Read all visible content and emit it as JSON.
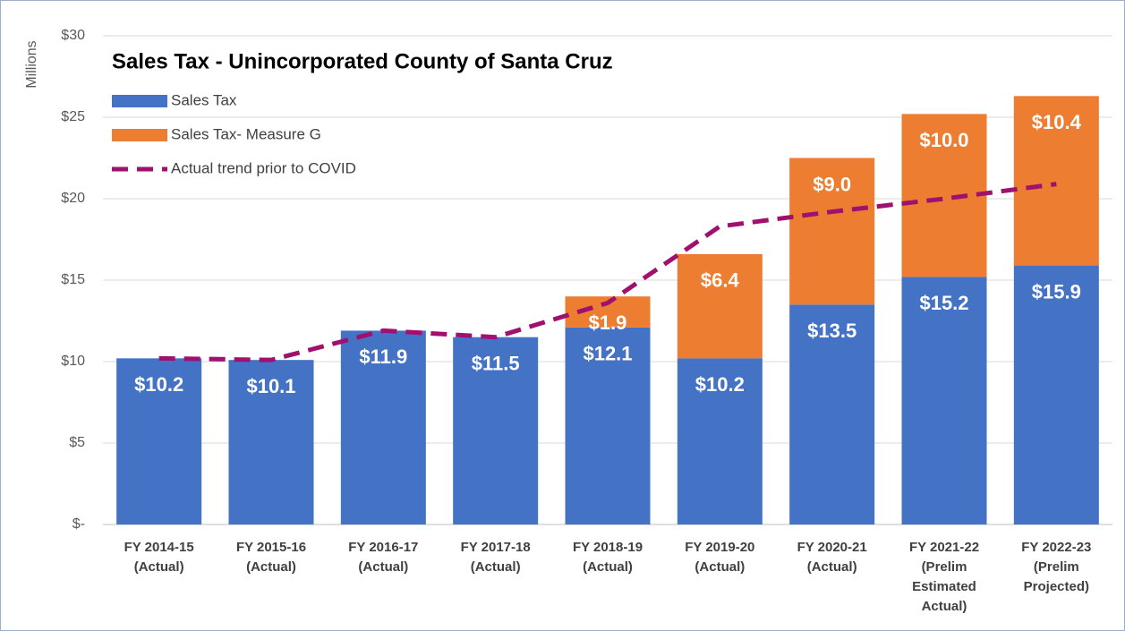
{
  "chart_data": {
    "type": "stacked_bar_line",
    "title": "Sales Tax - Unincorporated County of Santa Cruz",
    "y_label": "Millions",
    "categories": [
      [
        "FY 2014-15",
        "(Actual)"
      ],
      [
        "FY 2015-16",
        "(Actual)"
      ],
      [
        "FY 2016-17",
        "(Actual)"
      ],
      [
        "FY 2017-18",
        "(Actual)"
      ],
      [
        "FY 2018-19",
        "(Actual)"
      ],
      [
        "FY 2019-20",
        "(Actual)"
      ],
      [
        "FY 2020-21",
        "(Actual)"
      ],
      [
        "FY 2021-22",
        "(Prelim",
        "Estimated",
        "Actual)"
      ],
      [
        "FY 2022-23",
        "(Prelim",
        "Projected)"
      ]
    ],
    "series": [
      {
        "name": "Sales Tax",
        "color": "#4472c4",
        "kind": "bar",
        "values": [
          10.2,
          10.1,
          11.9,
          11.5,
          12.1,
          10.2,
          13.5,
          15.2,
          15.9
        ],
        "value_labels": [
          "$10.2",
          "$10.1",
          "$11.9",
          "$11.5",
          "$12.1",
          "$10.2",
          "$13.5",
          "$15.2",
          "$15.9"
        ]
      },
      {
        "name": "Sales Tax- Measure G",
        "color": "#ed7d31",
        "kind": "bar",
        "values": [
          null,
          null,
          null,
          null,
          1.9,
          6.4,
          9.0,
          10.0,
          10.4
        ],
        "value_labels": [
          null,
          null,
          null,
          null,
          "$1.9",
          "$6.4",
          "$9.0",
          "$10.0",
          "$10.4"
        ]
      },
      {
        "name": "Actual trend prior to COVID",
        "color": "#a0106e",
        "kind": "line",
        "dashed": true,
        "values": [
          10.2,
          10.1,
          11.9,
          11.5,
          13.6,
          18.3,
          19.2,
          20.0,
          20.9
        ]
      }
    ],
    "ylim": [
      0,
      30
    ],
    "yticks": [
      {
        "value": 0,
        "label": "$-"
      },
      {
        "value": 5,
        "label": "$5"
      },
      {
        "value": 10,
        "label": "$10"
      },
      {
        "value": 15,
        "label": "$15"
      },
      {
        "value": 20,
        "label": "$20"
      },
      {
        "value": 25,
        "label": "$25"
      },
      {
        "value": 30,
        "label": "$30"
      }
    ],
    "grid": true
  }
}
